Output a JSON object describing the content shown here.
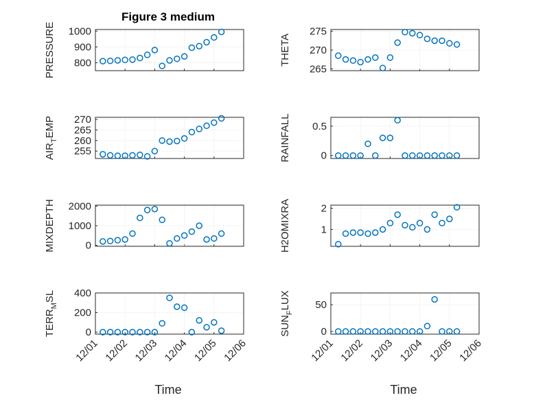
{
  "figure": {
    "title": "Figure 3 medium"
  },
  "chart_data": [
    {
      "type": "scatter",
      "ylabel": "PRESSURE",
      "xlim": [
        "12/01",
        "12/06"
      ],
      "ylim": [
        750,
        1010
      ],
      "yticks": [
        "800",
        "900",
        "1000"
      ],
      "x": [
        "12/01 06:00",
        "12/01 12:00",
        "12/01 18:00",
        "12/02 00:00",
        "12/02 06:00",
        "12/02 12:00",
        "12/02 18:00",
        "12/03 00:00",
        "12/03 06:00",
        "12/03 12:00",
        "12/03 18:00",
        "12/04 00:00",
        "12/04 06:00",
        "12/04 12:00",
        "12/04 18:00",
        "12/05 00:00",
        "12/05 06:00"
      ],
      "y": [
        810,
        812,
        815,
        818,
        820,
        830,
        850,
        880,
        780,
        815,
        825,
        840,
        895,
        905,
        930,
        960,
        995
      ]
    },
    {
      "type": "scatter",
      "ylabel": "THETA",
      "xlim": [
        "12/01",
        "12/06"
      ],
      "ylim": [
        264.5,
        275.5
      ],
      "yticks": [
        "265",
        "270",
        "275"
      ],
      "x": [
        "12/01 06:00",
        "12/01 12:00",
        "12/01 18:00",
        "12/02 00:00",
        "12/02 06:00",
        "12/02 12:00",
        "12/02 18:00",
        "12/03 00:00",
        "12/03 06:00",
        "12/03 12:00",
        "12/03 18:00",
        "12/04 00:00",
        "12/04 06:00",
        "12/04 12:00",
        "12/04 18:00",
        "12/05 00:00",
        "12/05 06:00"
      ],
      "y": [
        268.5,
        267.5,
        267.2,
        266.8,
        267.5,
        268.0,
        265.2,
        268.0,
        272.0,
        274.8,
        274.5,
        274.0,
        273.0,
        272.5,
        272.5,
        271.8,
        271.5
      ]
    },
    {
      "type": "scatter",
      "ylabel": "AIR_TEMP",
      "xlim": [
        "12/01",
        "12/06"
      ],
      "ylim": [
        251.5,
        271
      ],
      "yticks": [
        "255",
        "260",
        "265",
        "270"
      ],
      "x": [
        "12/01 06:00",
        "12/01 12:00",
        "12/01 18:00",
        "12/02 00:00",
        "12/02 06:00",
        "12/02 12:00",
        "12/02 18:00",
        "12/03 00:00",
        "12/03 06:00",
        "12/03 12:00",
        "12/03 18:00",
        "12/04 00:00",
        "12/04 06:00",
        "12/04 12:00",
        "12/04 18:00",
        "12/05 00:00",
        "12/05 06:00"
      ],
      "y": [
        253.5,
        253.0,
        252.8,
        252.8,
        253.0,
        253.2,
        252.5,
        255.0,
        260.0,
        259.5,
        259.8,
        261.0,
        264.0,
        265.5,
        267.0,
        268.5,
        270.5
      ]
    },
    {
      "type": "scatter",
      "ylabel": "RAINFALL",
      "xlim": [
        "12/01",
        "12/06"
      ],
      "ylim": [
        -0.05,
        0.65
      ],
      "yticks": [
        "0",
        "0.5"
      ],
      "x": [
        "12/01 06:00",
        "12/01 12:00",
        "12/01 18:00",
        "12/02 00:00",
        "12/02 06:00",
        "12/02 12:00",
        "12/02 18:00",
        "12/03 00:00",
        "12/03 06:00",
        "12/03 12:00",
        "12/03 18:00",
        "12/04 00:00",
        "12/04 06:00",
        "12/04 12:00",
        "12/04 18:00",
        "12/05 00:00",
        "12/05 06:00"
      ],
      "y": [
        0,
        0,
        0,
        0,
        0.2,
        0,
        0.3,
        0.3,
        0.6,
        0,
        0,
        0,
        0,
        0,
        0,
        0,
        0
      ]
    },
    {
      "type": "scatter",
      "ylabel": "MIXDEPTH",
      "xlim": [
        "12/01",
        "12/06"
      ],
      "ylim": [
        -50,
        2050
      ],
      "yticks": [
        "0",
        "1000",
        "2000"
      ],
      "x": [
        "12/01 06:00",
        "12/01 12:00",
        "12/01 18:00",
        "12/02 00:00",
        "12/02 06:00",
        "12/02 12:00",
        "12/02 18:00",
        "12/03 00:00",
        "12/03 06:00",
        "12/03 12:00",
        "12/03 18:00",
        "12/04 00:00",
        "12/04 06:00",
        "12/04 12:00",
        "12/04 18:00",
        "12/05 00:00",
        "12/05 06:00"
      ],
      "y": [
        200,
        220,
        260,
        300,
        600,
        1400,
        1800,
        1850,
        1300,
        100,
        350,
        500,
        700,
        1000,
        300,
        350,
        600
      ]
    },
    {
      "type": "scatter",
      "ylabel": "H2OMIXRA",
      "xlim": [
        "12/01",
        "12/06"
      ],
      "ylim": [
        0.2,
        2.15
      ],
      "yticks": [
        "1",
        "2"
      ],
      "x": [
        "12/01 06:00",
        "12/01 12:00",
        "12/01 18:00",
        "12/02 00:00",
        "12/02 06:00",
        "12/02 12:00",
        "12/02 18:00",
        "12/03 00:00",
        "12/03 06:00",
        "12/03 12:00",
        "12/03 18:00",
        "12/04 00:00",
        "12/04 06:00",
        "12/04 12:00",
        "12/04 18:00",
        "12/05 00:00",
        "12/05 06:00"
      ],
      "y": [
        0.3,
        0.8,
        0.85,
        0.85,
        0.8,
        0.85,
        1.0,
        1.3,
        1.7,
        1.2,
        1.1,
        1.3,
        1.0,
        1.7,
        1.3,
        1.5,
        2.05
      ]
    },
    {
      "type": "scatter",
      "ylabel": "TERR_MSL",
      "xlim": [
        "12/01",
        "12/06"
      ],
      "ylim": [
        -20,
        400
      ],
      "yticks": [
        "0",
        "200",
        "400"
      ],
      "x": [
        "12/01 06:00",
        "12/01 12:00",
        "12/01 18:00",
        "12/02 00:00",
        "12/02 06:00",
        "12/02 12:00",
        "12/02 18:00",
        "12/03 00:00",
        "12/03 06:00",
        "12/03 12:00",
        "12/03 18:00",
        "12/04 00:00",
        "12/04 06:00",
        "12/04 12:00",
        "12/04 18:00",
        "12/05 00:00",
        "12/05 06:00"
      ],
      "y": [
        0,
        0,
        0,
        0,
        0,
        0,
        0,
        0,
        90,
        350,
        260,
        250,
        0,
        120,
        50,
        100,
        15
      ]
    },
    {
      "type": "scatter",
      "ylabel": "SUN_FLUX",
      "xlim": [
        "12/01",
        "12/06"
      ],
      "ylim": [
        -5,
        72
      ],
      "yticks": [
        "0",
        "50"
      ],
      "x": [
        "12/01 06:00",
        "12/01 12:00",
        "12/01 18:00",
        "12/02 00:00",
        "12/02 06:00",
        "12/02 12:00",
        "12/02 18:00",
        "12/03 00:00",
        "12/03 06:00",
        "12/03 12:00",
        "12/03 18:00",
        "12/04 00:00",
        "12/04 06:00",
        "12/04 12:00",
        "12/04 18:00",
        "12/05 00:00",
        "12/05 06:00"
      ],
      "y": [
        0,
        0,
        0,
        0,
        0,
        0,
        0,
        0,
        0,
        0,
        0,
        0,
        10,
        60,
        0,
        0,
        0
      ]
    }
  ],
  "xaxis": {
    "ticks": [
      "12/01",
      "12/02",
      "12/03",
      "12/04",
      "12/05",
      "12/06"
    ],
    "label": "Time"
  },
  "colors": {
    "marker": "#0072BD"
  }
}
